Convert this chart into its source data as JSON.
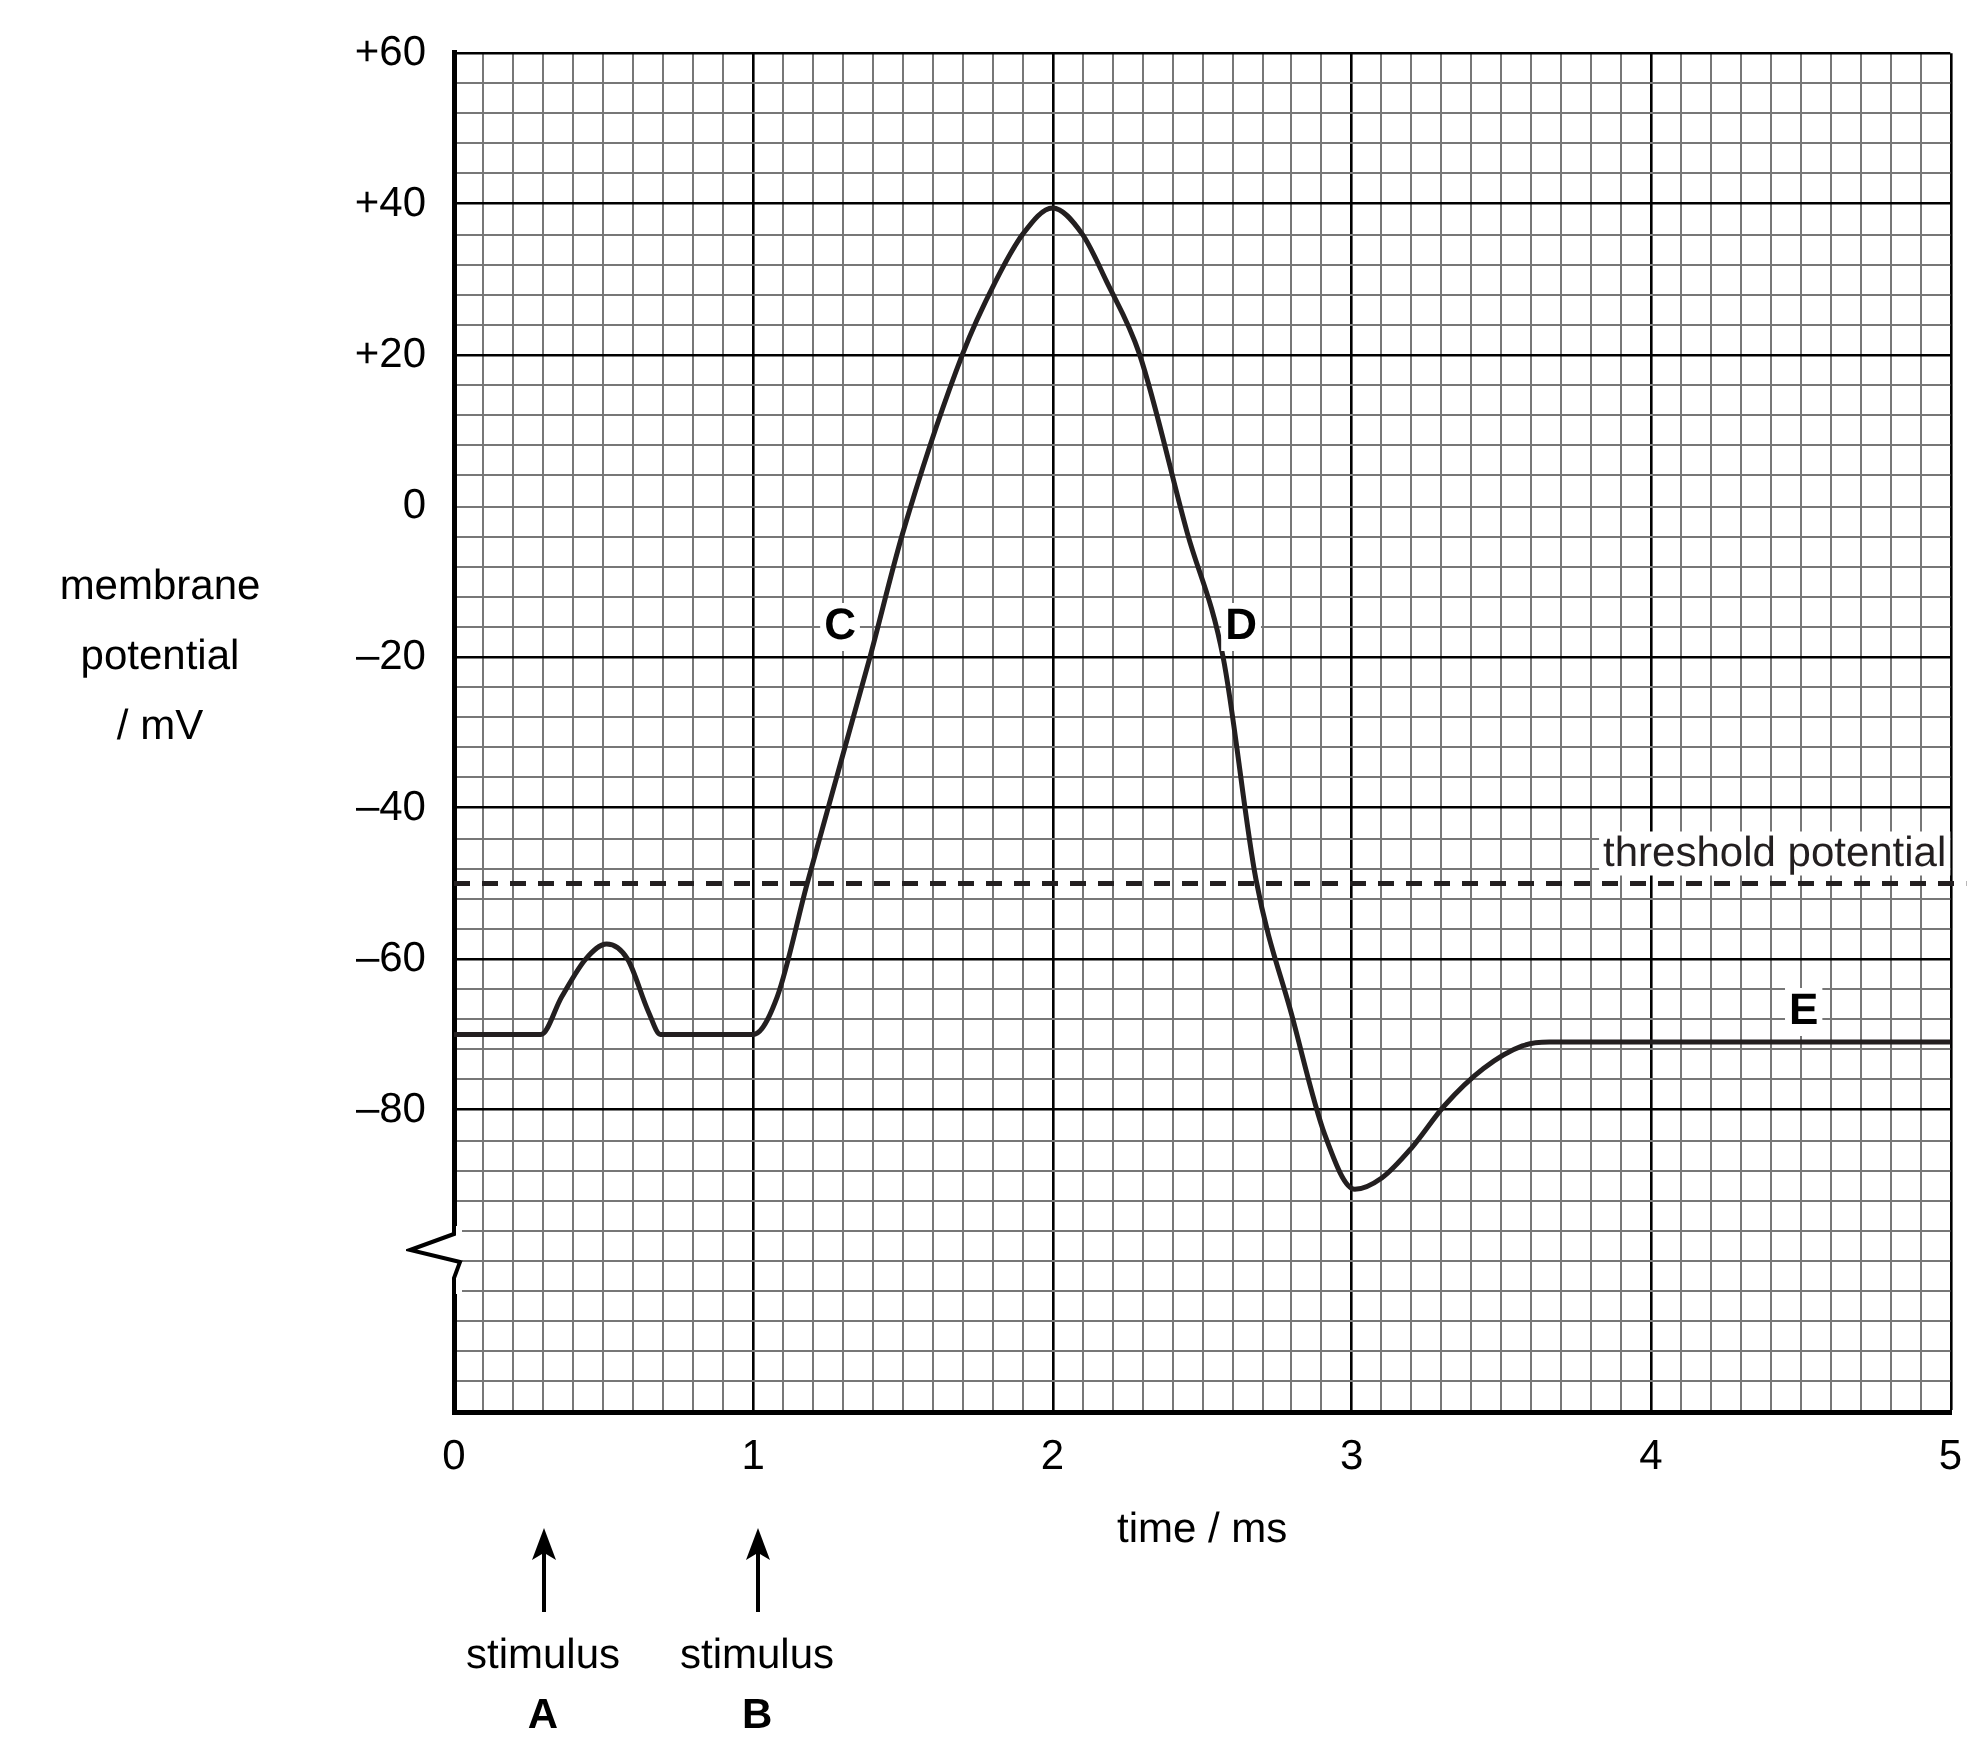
{
  "chart_data": {
    "type": "line",
    "xlabel": "time / ms",
    "ylabel": "membrane potential / mV",
    "x": [
      0,
      0.29,
      0.36,
      0.44,
      0.51,
      0.58,
      0.65,
      0.69,
      1.0,
      1.08,
      1.18,
      1.39,
      1.5,
      1.7,
      1.81,
      1.9,
      2.0,
      2.1,
      2.18,
      2.29,
      2.45,
      2.57,
      2.68,
      2.8,
      2.91,
      3.01,
      3.1,
      3.2,
      3.31,
      3.44,
      3.57,
      3.66,
      5
    ],
    "series": [
      {
        "color": "#231f20",
        "values": [
          -70,
          -70,
          -65,
          -60,
          -58,
          -60,
          -67,
          -70,
          -70,
          -65,
          -50,
          -20,
          -3.5,
          20.2,
          29.8,
          36,
          39.5,
          36,
          29.8,
          20.2,
          -3.5,
          -20,
          -49.5,
          -67.5,
          -83.3,
          -90.5,
          -89,
          -85,
          -79.4,
          -74.5,
          -71.5,
          -71,
          -71
        ]
      }
    ],
    "xlim": [
      0,
      5
    ],
    "ylim": [
      -120,
      60
    ],
    "xticks": [
      0,
      {
        "value": 0.1,
        "label": null
      },
      {
        "value": 0.2,
        "label": null
      },
      {
        "value": 0.3,
        "label": null
      },
      {
        "value": 0.4,
        "label": null
      },
      {
        "value": 0.5,
        "label": null
      },
      {
        "value": 0.6,
        "label": null
      },
      {
        "value": 0.7,
        "label": null
      },
      {
        "value": 0.8,
        "label": null
      },
      {
        "value": 0.9,
        "label": null
      },
      1,
      {
        "value": 1.1,
        "label": null
      },
      {
        "value": 1.2,
        "label": null
      },
      {
        "value": 1.3,
        "label": null
      },
      {
        "value": 1.4,
        "label": null
      },
      {
        "value": 1.5,
        "label": null
      },
      {
        "value": 1.6,
        "label": null
      },
      {
        "value": 1.7,
        "label": null
      },
      {
        "value": 1.8,
        "label": null
      },
      {
        "value": 1.9,
        "label": null
      },
      2,
      {
        "value": 2.1,
        "label": null
      },
      {
        "value": 2.2,
        "label": null
      },
      {
        "value": 2.3,
        "label": null
      },
      {
        "value": 2.4,
        "label": null
      },
      {
        "value": 2.5,
        "label": null
      },
      {
        "value": 2.6,
        "label": null
      },
      {
        "value": 2.7,
        "label": null
      },
      {
        "value": 2.8,
        "label": null
      },
      {
        "value": 2.9,
        "label": null
      },
      3,
      {
        "value": 3.1,
        "label": null
      },
      {
        "value": 3.2,
        "label": null
      },
      {
        "value": 3.3,
        "label": null
      },
      {
        "value": 3.4,
        "label": null
      },
      {
        "value": 3.5,
        "label": null
      },
      {
        "value": 3.6,
        "label": null
      },
      {
        "value": 3.7,
        "label": null
      },
      {
        "value": 3.8,
        "label": null
      },
      {
        "value": 3.9,
        "label": null
      },
      4,
      {
        "value": 4.1,
        "label": null
      },
      {
        "value": 4.2,
        "label": null
      },
      {
        "value": 4.3,
        "label": null
      },
      {
        "value": 4.4,
        "label": null
      },
      {
        "value": 4.5,
        "label": null
      },
      {
        "value": 4.6,
        "label": null
      },
      {
        "value": 4.7,
        "label": null
      },
      {
        "value": 4.8,
        "label": null
      },
      {
        "value": 4.9,
        "label": null
      },
      5
    ],
    "yticks": [
      {
        "value": -120,
        "label": null
      },
      {
        "value": -116,
        "label": null
      },
      {
        "value": -112,
        "label": null
      },
      {
        "value": -108,
        "label": null
      },
      {
        "value": -104,
        "label": null
      },
      {
        "value": -100,
        "label": null
      },
      {
        "value": -96,
        "label": null
      },
      {
        "value": -92,
        "label": null
      },
      {
        "value": -88,
        "label": null
      },
      {
        "value": -84,
        "label": null
      },
      {
        "value": -80,
        "label": "–80"
      },
      {
        "value": -76,
        "label": null
      },
      {
        "value": -72,
        "label": null
      },
      {
        "value": -68,
        "label": null
      },
      {
        "value": -64,
        "label": null
      },
      {
        "value": -60,
        "label": "–60"
      },
      {
        "value": -56,
        "label": null
      },
      {
        "value": -52,
        "label": null
      },
      {
        "value": -48,
        "label": null
      },
      {
        "value": -44,
        "label": null
      },
      {
        "value": -40,
        "label": "–40"
      },
      {
        "value": -36,
        "label": null
      },
      {
        "value": -32,
        "label": null
      },
      {
        "value": -28,
        "label": null
      },
      {
        "value": -24,
        "label": null
      },
      {
        "value": -20,
        "label": "–20"
      },
      {
        "value": -16,
        "label": null
      },
      {
        "value": -12,
        "label": null
      },
      {
        "value": -8,
        "label": null
      },
      {
        "value": -4,
        "label": null
      },
      0,
      {
        "value": 4,
        "label": null
      },
      {
        "value": 8,
        "label": null
      },
      {
        "value": 12,
        "label": null
      },
      {
        "value": 16,
        "label": null
      },
      {
        "value": 20,
        "label": "+20"
      },
      {
        "value": 24,
        "label": null
      },
      {
        "value": 28,
        "label": null
      },
      {
        "value": 32,
        "label": null
      },
      {
        "value": 36,
        "label": null
      },
      {
        "value": 40,
        "label": "+40"
      },
      {
        "value": 44,
        "label": null
      },
      {
        "value": 48,
        "label": null
      },
      {
        "value": 52,
        "label": null
      },
      {
        "value": 56,
        "label": null
      },
      {
        "value": 60,
        "label": "+60"
      }
    ],
    "grid": true,
    "legend": false,
    "marker": "none",
    "line_style": "solid",
    "ref_lines": [
      {
        "axis": "y",
        "value": -50,
        "label": "threshold potential",
        "line_style": "dashed",
        "color": "#231f20"
      }
    ],
    "annotations": [
      {
        "text": "C",
        "x": 1.29,
        "y": -16
      },
      {
        "text": "D",
        "x": 2.63,
        "y": -16
      },
      {
        "text": "E",
        "x": 4.51,
        "y": -67
      },
      "stimulus A",
      "stimulus B"
    ]
  }
}
